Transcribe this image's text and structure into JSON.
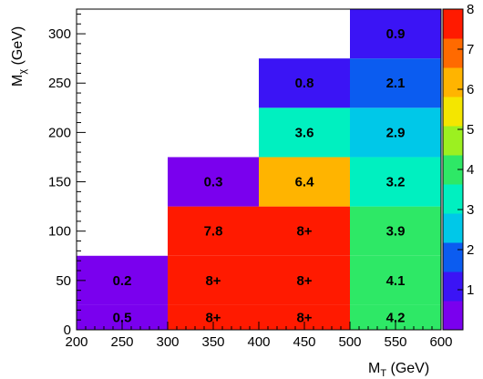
{
  "chart_data": {
    "type": "heatmap",
    "xlabel_main": "M",
    "xlabel_sub": "T",
    "xlabel_unit": " (GeV)",
    "ylabel_main": "M",
    "ylabel_sub": "χ",
    "ylabel_unit": " (GeV)",
    "xlim": [
      200,
      600
    ],
    "ylim": [
      0,
      325
    ],
    "x_ticks": [
      200,
      250,
      300,
      350,
      400,
      450,
      500,
      550,
      600
    ],
    "y_ticks": [
      0,
      50,
      100,
      150,
      200,
      250,
      300
    ],
    "colorbar_range": [
      0,
      8
    ],
    "colorbar_ticks": [
      1,
      2,
      3,
      4,
      5,
      6,
      7,
      8
    ],
    "cells": [
      {
        "x0": 200,
        "x1": 300,
        "y0": 0,
        "y1": 25,
        "value": 0.5,
        "label": "0.5"
      },
      {
        "x0": 200,
        "x1": 300,
        "y0": 25,
        "y1": 75,
        "value": 0.2,
        "label": "0.2"
      },
      {
        "x0": 300,
        "x1": 400,
        "y0": 0,
        "y1": 25,
        "value": 8.0,
        "label": "8+"
      },
      {
        "x0": 300,
        "x1": 400,
        "y0": 25,
        "y1": 75,
        "value": 8.0,
        "label": "8+"
      },
      {
        "x0": 300,
        "x1": 400,
        "y0": 75,
        "y1": 125,
        "value": 7.8,
        "label": "7.8"
      },
      {
        "x0": 300,
        "x1": 400,
        "y0": 125,
        "y1": 175,
        "value": 0.3,
        "label": "0.3"
      },
      {
        "x0": 400,
        "x1": 500,
        "y0": 0,
        "y1": 25,
        "value": 8.0,
        "label": "8+"
      },
      {
        "x0": 400,
        "x1": 500,
        "y0": 25,
        "y1": 75,
        "value": 8.0,
        "label": "8+"
      },
      {
        "x0": 400,
        "x1": 500,
        "y0": 75,
        "y1": 125,
        "value": 8.0,
        "label": "8+"
      },
      {
        "x0": 400,
        "x1": 500,
        "y0": 125,
        "y1": 175,
        "value": 6.4,
        "label": "6.4"
      },
      {
        "x0": 400,
        "x1": 500,
        "y0": 175,
        "y1": 225,
        "value": 3.6,
        "label": "3.6"
      },
      {
        "x0": 400,
        "x1": 500,
        "y0": 225,
        "y1": 275,
        "value": 0.8,
        "label": "0.8"
      },
      {
        "x0": 500,
        "x1": 600,
        "y0": 0,
        "y1": 25,
        "value": 4.2,
        "label": "4.2"
      },
      {
        "x0": 500,
        "x1": 600,
        "y0": 25,
        "y1": 75,
        "value": 4.1,
        "label": "4.1"
      },
      {
        "x0": 500,
        "x1": 600,
        "y0": 75,
        "y1": 125,
        "value": 3.9,
        "label": "3.9"
      },
      {
        "x0": 500,
        "x1": 600,
        "y0": 125,
        "y1": 175,
        "value": 3.2,
        "label": "3.2"
      },
      {
        "x0": 500,
        "x1": 600,
        "y0": 175,
        "y1": 225,
        "value": 2.9,
        "label": "2.9"
      },
      {
        "x0": 500,
        "x1": 600,
        "y0": 225,
        "y1": 275,
        "value": 2.1,
        "label": "2.1"
      },
      {
        "x0": 500,
        "x1": 600,
        "y0": 275,
        "y1": 325,
        "value": 0.9,
        "label": "0.9"
      }
    ],
    "palette": [
      "#7a00ee",
      "#3b14f5",
      "#0b5cf0",
      "#00c8e8",
      "#00f0c0",
      "#2ee866",
      "#9cf020",
      "#f4e600",
      "#ffb400",
      "#ff6a00",
      "#ff1a00"
    ]
  }
}
